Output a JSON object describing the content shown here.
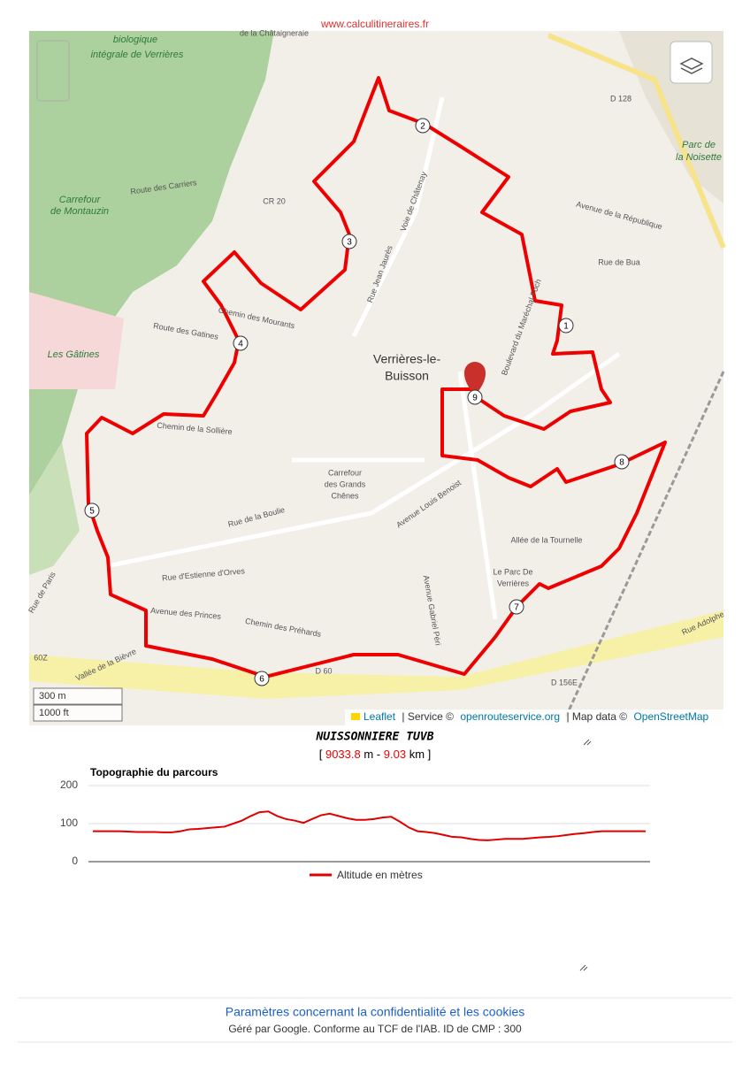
{
  "header": {
    "site": "www.calculitineraires.fr"
  },
  "map": {
    "labels": [
      "de la Châtaigneraie",
      "biologique",
      "intégrale de Verrières",
      "Carrefour",
      "de Montauzin",
      "Route des Carriers",
      "CR 20",
      "Les Gâtines",
      "Route des Gatines",
      "Chemin des Mourants",
      "Chemin de la Sollière",
      "Rue de la Boulie",
      "Rue d'Estienne d'Orves",
      "Avenue des Princes",
      "Chemin des Préhards",
      "Rue Jean Jaurès",
      "Voie de Châtenay",
      "Verrières-le-",
      "Buisson",
      "Carrefour",
      "des Grands",
      "Chênes",
      "Avenue Louis Benoist",
      "Avenue Gabriel Péri",
      "Boulevard du Maréchal Foch",
      "Avenue de la République",
      "Rue de Bua",
      "Allée de la Tournelle",
      "Le Parc De",
      "Verrières",
      "Parc de",
      "la Noisette",
      "D 128",
      "D 60",
      "D 156E",
      "60Z",
      "Vallée de la Bièvre",
      "Rue de Paris",
      "Rue Adolphe"
    ],
    "waypoints": [
      "1",
      "2",
      "3",
      "4",
      "5",
      "6",
      "7",
      "8",
      "9"
    ],
    "scale": [
      "300 m",
      "1000 ft"
    ],
    "attribution": {
      "leaflet": "Leaflet",
      "service": "| Service ©",
      "ors": "openrouteservice.org",
      "data": "| Map data ©",
      "osm": "OpenStreetMap"
    }
  },
  "route": {
    "name": "NUISSONNIERE TUVB",
    "open": "[",
    "meters": "9033.8",
    "m_sep": "m -",
    "km": "9.03",
    "km_close": "km ]"
  },
  "chart_data": {
    "type": "line",
    "title": "Topographie du parcours",
    "series": [
      {
        "name": "Altitude en mètres",
        "color": "#e00000",
        "values": [
          80,
          80,
          80,
          80,
          79,
          78,
          78,
          78,
          77,
          77,
          80,
          85,
          86,
          88,
          90,
          92,
          100,
          108,
          120,
          130,
          132,
          120,
          112,
          108,
          102,
          112,
          122,
          126,
          120,
          114,
          110,
          110,
          112,
          116,
          118,
          105,
          90,
          80,
          78,
          75,
          70,
          65,
          64,
          60,
          57,
          56,
          58,
          60,
          60,
          60,
          62,
          64,
          65,
          67,
          70,
          73,
          75,
          78,
          80,
          80,
          80,
          80,
          80,
          80
        ]
      }
    ],
    "ylim": [
      0,
      200
    ],
    "yticks": [
      0,
      100,
      200
    ],
    "grid": true
  },
  "footer": {
    "link": "Paramètres concernant la confidentialité et les cookies",
    "note": "Géré par Google. Conforme au TCF de l'IAB. ID de CMP : 300"
  }
}
